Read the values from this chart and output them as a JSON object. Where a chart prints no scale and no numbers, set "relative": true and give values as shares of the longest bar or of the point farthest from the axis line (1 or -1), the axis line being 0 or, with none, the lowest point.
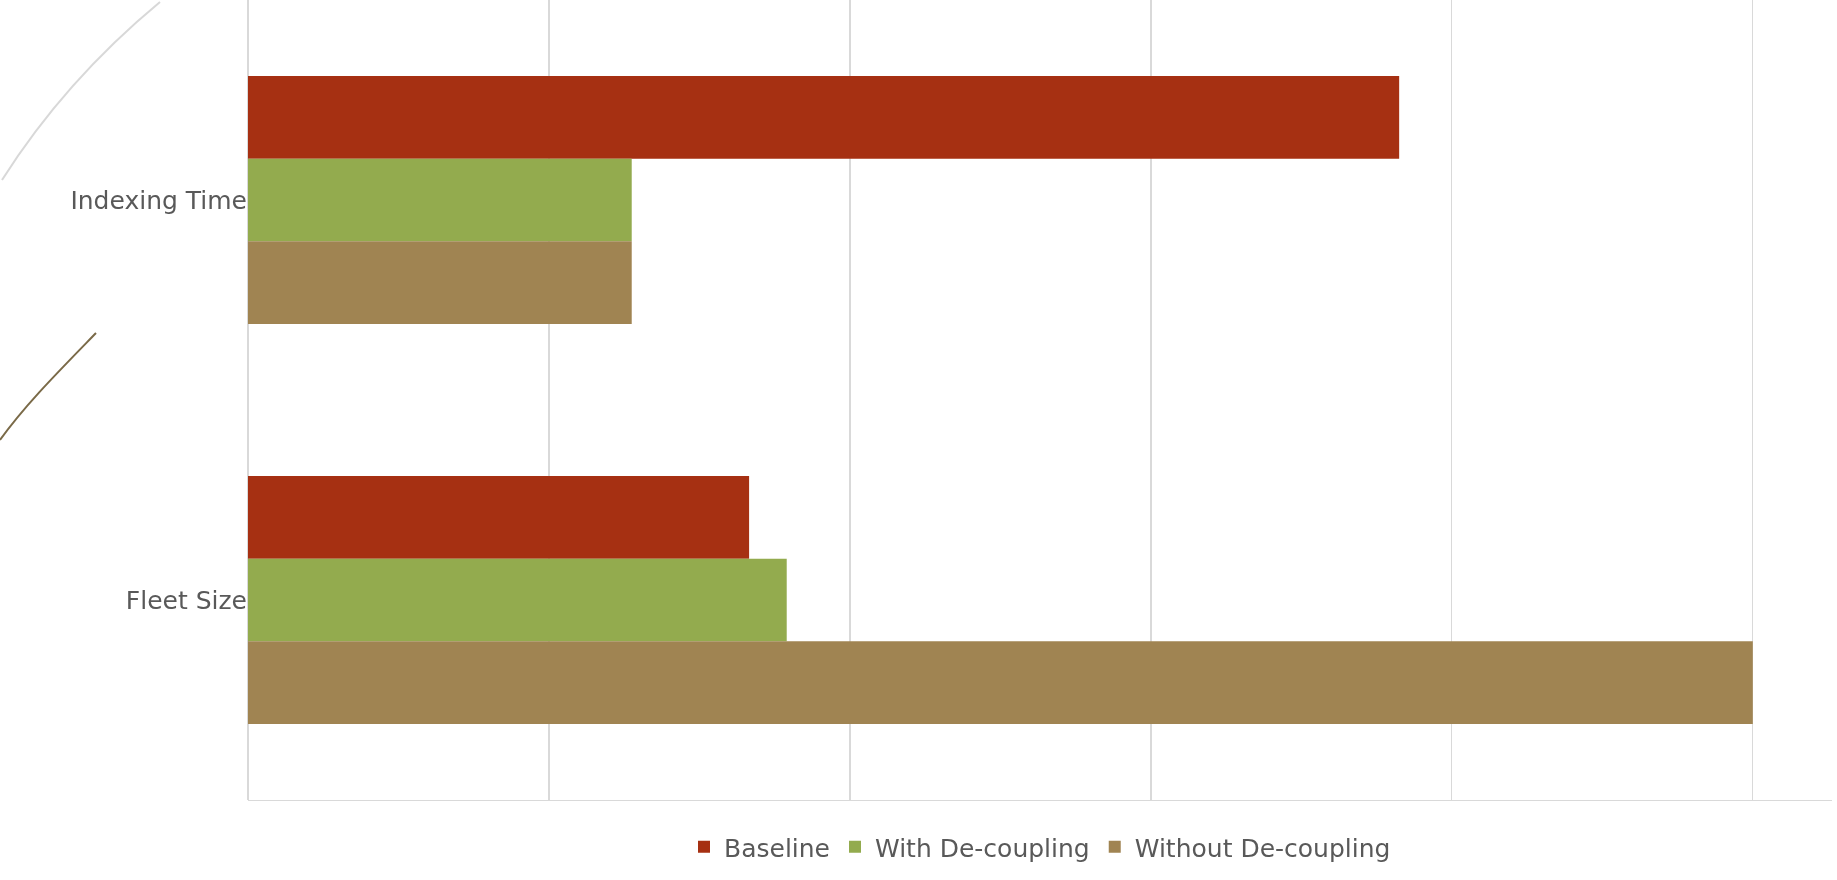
{
  "chart_data": {
    "type": "bar",
    "orientation": "horizontal",
    "relative": true,
    "categories": [
      "Indexing Time",
      "Fleet Size"
    ],
    "series": [
      {
        "name": "Baseline",
        "color": "#a63012",
        "values": [
          0.765,
          0.333
        ]
      },
      {
        "name": "With De-coupling",
        "color": "#93ab4e",
        "values": [
          0.255,
          0.358
        ]
      },
      {
        "name": "Without De-coupling",
        "color": "#a08452",
        "values": [
          0.255,
          1
        ]
      }
    ],
    "grid": "x",
    "legend": "bottom"
  }
}
